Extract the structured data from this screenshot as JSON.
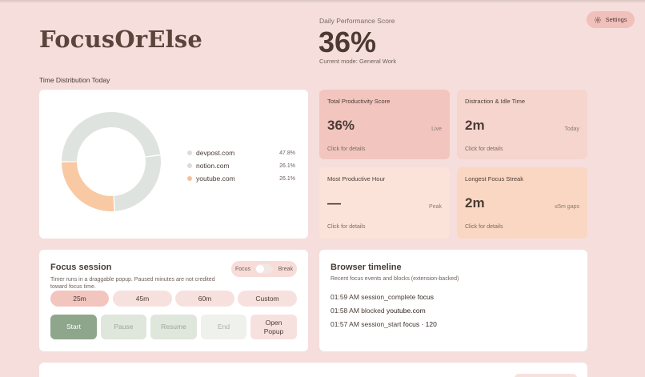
{
  "header": {
    "brand": "FocusOrElse",
    "performance_label": "Daily Performance Score",
    "performance_value": "36%",
    "mode": "Current mode: General Work",
    "settings_label": "Settings"
  },
  "time_distribution": {
    "title": "Time Distribution Today",
    "chart_data": {
      "type": "pie",
      "categories": [
        "devpost.com",
        "notion.com",
        "youtube.com"
      ],
      "values": [
        47.8,
        26.1,
        26.1
      ],
      "colors": [
        "#dfe3df",
        "#dfe3df",
        "#f8c9a2"
      ]
    },
    "legend": [
      {
        "label": "devpost.com",
        "pct": "47.8%",
        "color": "#dcdcdc"
      },
      {
        "label": "notion.com",
        "pct": "26.1%",
        "color": "#dcdcdc"
      },
      {
        "label": "youtube.com",
        "pct": "26.1%",
        "color": "#f6c198"
      }
    ]
  },
  "stats": [
    {
      "title": "Total Productivity Score",
      "value": "36%",
      "tag": "Live",
      "foot": "Click for details"
    },
    {
      "title": "Distraction & Idle Time",
      "value": "2m",
      "tag": "Today",
      "foot": "Click for details"
    },
    {
      "title": "Most Productive Hour",
      "value": "—",
      "tag": "Peak",
      "foot": "Click for details"
    },
    {
      "title": "Longest Focus Streak",
      "value": "2m",
      "tag": "≤5m gaps",
      "foot": "Click for details"
    }
  ],
  "focus_session": {
    "title": "Focus session",
    "description": "Timer runs in a draggable popup. Paused minutes are not credited toward focus time.",
    "toggle_left": "Focus",
    "toggle_right": "Break",
    "durations": [
      "25m",
      "45m",
      "60m",
      "Custom"
    ],
    "actions": {
      "start": "Start",
      "pause": "Pause",
      "resume": "Resume",
      "end": "End",
      "open_popup": "Open Popup"
    }
  },
  "timeline": {
    "title": "Browser timeline",
    "subtitle": "Recent focus events and blocks (extension-backed)",
    "items": [
      {
        "time": "01:59 AM",
        "event": "session_complete",
        "detail": "focus"
      },
      {
        "time": "01:58 AM",
        "event": "blocked",
        "detail": "youtube.com"
      },
      {
        "time": "01:57 AM",
        "event": "session_start",
        "detail": "focus · 120"
      }
    ]
  }
}
